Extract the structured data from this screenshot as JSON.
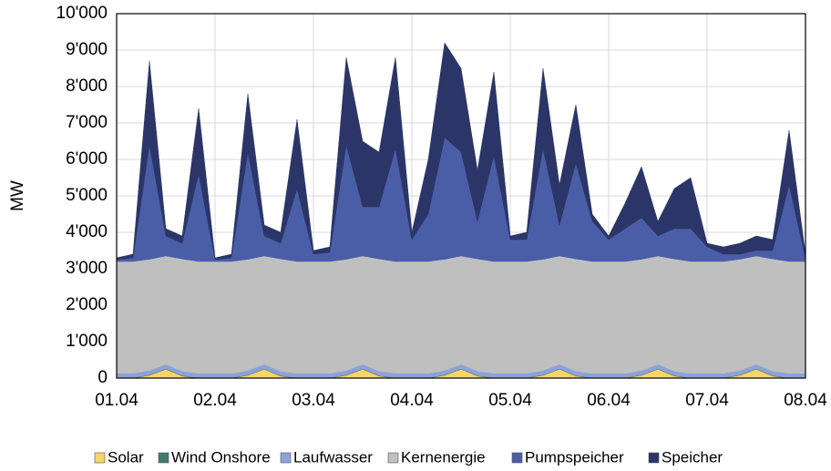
{
  "chart_data": {
    "type": "stacked-area",
    "y_label": "MW",
    "categories": [
      "01.04",
      null,
      null,
      null,
      null,
      null,
      "02.04",
      null,
      null,
      null,
      null,
      null,
      "03.04",
      null,
      null,
      null,
      null,
      null,
      "04.04",
      null,
      null,
      null,
      null,
      null,
      "05.04",
      null,
      null,
      null,
      null,
      null,
      "06.04",
      null,
      null,
      null,
      null,
      null,
      "07.04",
      null,
      null,
      null,
      null,
      null,
      "08.04"
    ],
    "ylim": [
      0,
      10000
    ],
    "yticks": [
      0,
      {
        "value": 1000,
        "label": "1'000"
      },
      {
        "value": 2000,
        "label": "2'000"
      },
      {
        "value": 3000,
        "label": "3'000"
      },
      {
        "value": 4000,
        "label": "4'000"
      },
      {
        "value": 5000,
        "label": "5'000"
      },
      {
        "value": 6000,
        "label": "6'000"
      },
      {
        "value": 7000,
        "label": "7'000"
      },
      {
        "value": 8000,
        "label": "8'000"
      },
      {
        "value": 9000,
        "label": "9'000"
      },
      {
        "value": 10000,
        "label": "10'000"
      }
    ],
    "grid": true,
    "legend": "bottom",
    "series": [
      {
        "name": "Solar",
        "color": "#f7d56b",
        "values": [
          0,
          0,
          80,
          250,
          60,
          0,
          0,
          0,
          80,
          250,
          60,
          0,
          0,
          0,
          80,
          250,
          60,
          0,
          0,
          0,
          80,
          250,
          60,
          0,
          0,
          0,
          80,
          250,
          60,
          0,
          0,
          0,
          80,
          250,
          60,
          0,
          0,
          0,
          80,
          250,
          60,
          0,
          0
        ]
      },
      {
        "name": "Wind Onshore",
        "color": "#3f7a6c",
        "values": [
          10,
          10,
          10,
          10,
          10,
          10,
          10,
          10,
          10,
          10,
          10,
          10,
          10,
          10,
          10,
          10,
          10,
          10,
          10,
          10,
          10,
          10,
          10,
          10,
          10,
          10,
          10,
          10,
          10,
          10,
          10,
          10,
          10,
          10,
          10,
          10,
          10,
          10,
          10,
          10,
          10,
          10,
          10
        ]
      },
      {
        "name": "Laufwasser",
        "color": "#8da2d8",
        "values": [
          120,
          120,
          120,
          120,
          120,
          120,
          120,
          120,
          120,
          120,
          120,
          120,
          120,
          120,
          120,
          120,
          120,
          120,
          120,
          120,
          120,
          120,
          120,
          120,
          120,
          120,
          120,
          120,
          120,
          120,
          120,
          120,
          120,
          120,
          120,
          120,
          120,
          120,
          120,
          120,
          120,
          120,
          120
        ]
      },
      {
        "name": "Kernenergie",
        "color": "#bfbfbf",
        "values": [
          3070,
          3070,
          3050,
          2970,
          3080,
          3070,
          3070,
          3070,
          3050,
          2970,
          3080,
          3070,
          3070,
          3070,
          3050,
          2970,
          3080,
          3070,
          3070,
          3070,
          3050,
          2970,
          3080,
          3070,
          3070,
          3070,
          3050,
          2970,
          3080,
          3070,
          3070,
          3070,
          3050,
          2970,
          3080,
          3070,
          3070,
          3070,
          3050,
          2970,
          3080,
          3070,
          3070
        ]
      },
      {
        "name": "Pumpspeicher",
        "color": "#4a5ea8",
        "values": [
          50,
          100,
          3140,
          550,
          430,
          2400,
          50,
          100,
          2940,
          550,
          430,
          2000,
          200,
          250,
          3140,
          1350,
          1430,
          3100,
          600,
          1300,
          3340,
          2850,
          1030,
          2900,
          600,
          600,
          3040,
          850,
          2630,
          1100,
          600,
          900,
          1140,
          550,
          830,
          900,
          400,
          200,
          140,
          150,
          230,
          2100,
          100
        ]
      },
      {
        "name": "Speicher",
        "color": "#2b3567",
        "values": [
          50,
          100,
          2300,
          200,
          200,
          1800,
          50,
          100,
          1600,
          300,
          300,
          1900,
          100,
          150,
          2400,
          1800,
          1500,
          2500,
          200,
          1500,
          2600,
          2300,
          1400,
          2300,
          100,
          200,
          2200,
          1100,
          1600,
          200,
          100,
          700,
          1400,
          400,
          1100,
          1400,
          100,
          200,
          300,
          400,
          300,
          1500,
          100
        ]
      }
    ]
  }
}
